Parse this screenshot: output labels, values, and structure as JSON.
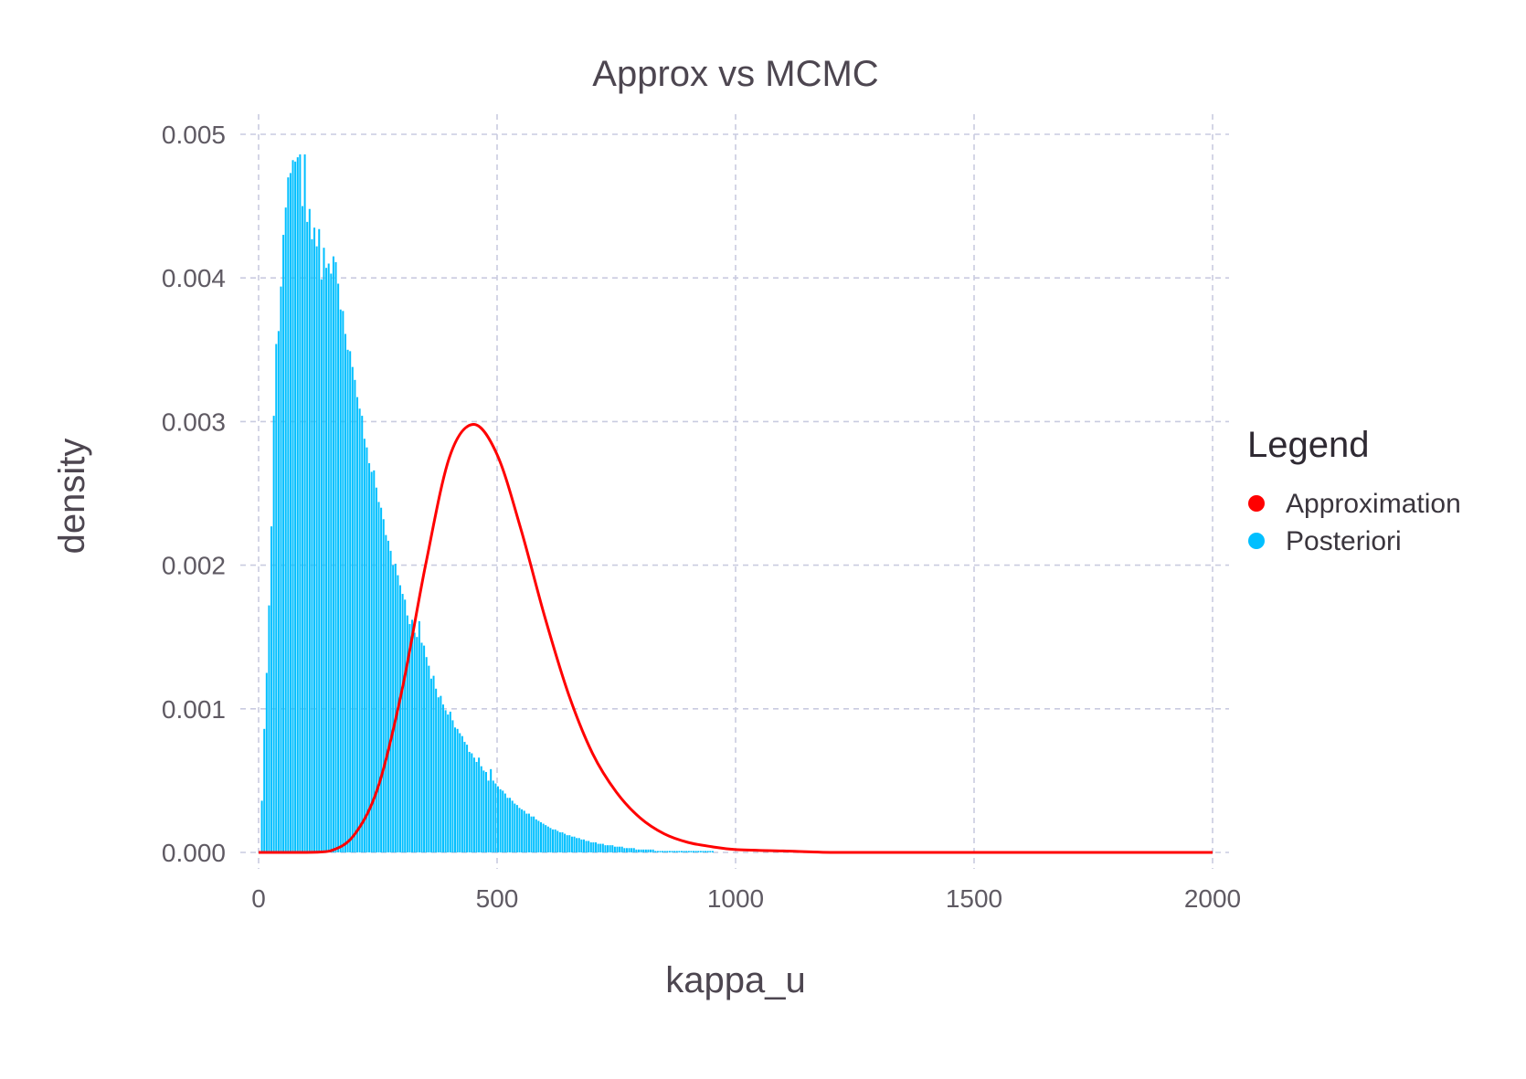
{
  "chart_data": {
    "type": "bar",
    "title": "Approx vs MCMC",
    "xlabel": "kappa_u",
    "ylabel": "density",
    "xlim": [
      0,
      2000
    ],
    "ylim": [
      0,
      0.005
    ],
    "xticks": [
      0,
      500,
      1000,
      1500,
      2000
    ],
    "xtick_labels": [
      "0",
      "500",
      "1000",
      "1500",
      "2000"
    ],
    "yticks": [
      0,
      0.001,
      0.002,
      0.003,
      0.004,
      0.005
    ],
    "ytick_labels": [
      "0.000",
      "0.001",
      "0.002",
      "0.003",
      "0.004",
      "0.005"
    ],
    "grid": true,
    "legend": {
      "title": "Legend",
      "position": "right",
      "entries": [
        {
          "label": "Approximation",
          "color": "#ff0000"
        },
        {
          "label": "Posteriori",
          "color": "#00bfff"
        }
      ]
    },
    "histogram": {
      "name": "Posteriori",
      "color": "#00bfff",
      "bin_start": 5,
      "bin_width": 5,
      "values": [
        0.00036,
        0.00086,
        0.00125,
        0.00172,
        0.00227,
        0.00304,
        0.00354,
        0.00363,
        0.00394,
        0.0043,
        0.00449,
        0.0047,
        0.00473,
        0.00482,
        0.00481,
        0.00484,
        0.00486,
        0.0045,
        0.00486,
        0.00439,
        0.00448,
        0.00427,
        0.00435,
        0.00422,
        0.00434,
        0.00399,
        0.00421,
        0.00407,
        0.0041,
        0.00403,
        0.00415,
        0.00411,
        0.00396,
        0.00378,
        0.00377,
        0.00361,
        0.0035,
        0.00349,
        0.00338,
        0.00329,
        0.00317,
        0.00309,
        0.00304,
        0.00288,
        0.00282,
        0.00271,
        0.00265,
        0.00266,
        0.00254,
        0.00244,
        0.0024,
        0.00232,
        0.00221,
        0.00217,
        0.0021,
        0.002,
        0.00201,
        0.00193,
        0.00186,
        0.0018,
        0.00176,
        0.00165,
        0.00159,
        0.00162,
        0.00153,
        0.0015,
        0.00161,
        0.00146,
        0.00144,
        0.00136,
        0.0013,
        0.00121,
        0.00123,
        0.00114,
        0.00108,
        0.00109,
        0.00103,
        0.00099,
        0.00096,
        0.00098,
        0.00092,
        0.00087,
        0.00086,
        0.00083,
        0.00081,
        0.00077,
        0.00075,
        0.0007,
        0.00069,
        0.00066,
        0.00063,
        0.00066,
        0.0006,
        0.00057,
        0.00056,
        0.0005,
        0.00058,
        0.0005,
        0.00048,
        0.00046,
        0.00044,
        0.00043,
        0.00041,
        0.00038,
        0.00038,
        0.00036,
        0.00034,
        0.00033,
        0.00031,
        0.0003,
        0.00029,
        0.00027,
        0.00027,
        0.00025,
        0.00025,
        0.00023,
        0.00022,
        0.00021,
        0.0002,
        0.00019,
        0.00018,
        0.00017,
        0.00016,
        0.00016,
        0.00015,
        0.00014,
        0.00014,
        0.00013,
        0.00012,
        0.00012,
        0.00011,
        0.00011,
        0.0001,
        0.0001,
        9e-05,
        9e-05,
        8e-05,
        8e-05,
        7e-05,
        7e-05,
        7e-05,
        6e-05,
        6e-05,
        6e-05,
        5e-05,
        5e-05,
        5e-05,
        5e-05,
        4e-05,
        4e-05,
        4e-05,
        4e-05,
        3e-05,
        3e-05,
        3e-05,
        3e-05,
        3e-05,
        2e-05,
        2e-05,
        2e-05,
        2e-05,
        2e-05,
        2e-05,
        2e-05,
        2e-05,
        1e-05,
        1e-05,
        1e-05,
        1e-05,
        1e-05,
        1e-05,
        1e-05,
        1e-05,
        1e-05,
        1e-05,
        1e-05,
        1e-05,
        1e-05,
        1e-05,
        1e-05,
        1e-05,
        1e-05,
        1e-05,
        1e-05,
        1e-05,
        1e-05,
        1e-05,
        1e-05,
        1e-05,
        1e-05
      ]
    },
    "series": [
      {
        "name": "Approximation",
        "type": "line",
        "color": "#ff0000",
        "x": [
          0,
          100,
          150,
          200,
          250,
          300,
          350,
          400,
          450,
          500,
          550,
          600,
          650,
          700,
          750,
          800,
          850,
          900,
          950,
          1000,
          1100,
          1200,
          1300,
          1400,
          1500,
          1600,
          1800,
          2000
        ],
        "y": [
          0,
          0.0,
          1e-05,
          0.00012,
          0.00045,
          0.00112,
          0.002,
          0.00275,
          0.00298,
          0.00277,
          0.00225,
          0.00164,
          0.0011,
          0.00069,
          0.00042,
          0.00024,
          0.00013,
          7e-05,
          4e-05,
          2e-05,
          1e-05,
          0.0,
          0.0,
          0.0,
          0.0,
          0.0,
          0.0,
          0.0
        ]
      }
    ]
  }
}
